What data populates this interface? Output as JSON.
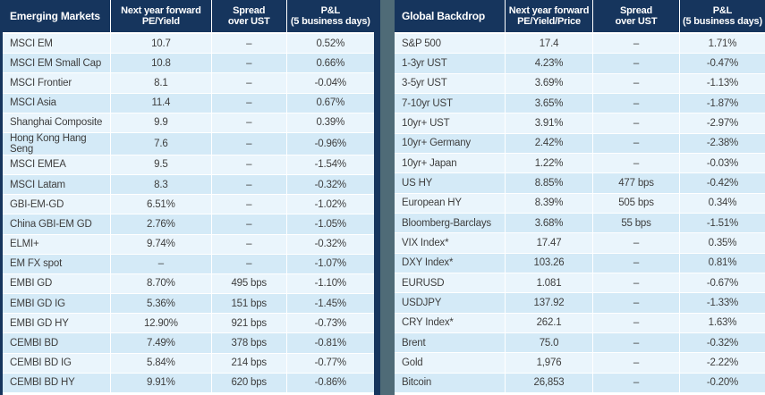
{
  "colors": {
    "header_bg": "#16355D",
    "divider": "#4F6B77",
    "row_light": "#EAF5FC",
    "row_dark": "#D4EAF7",
    "text": "#3E3E3E",
    "header_text": "#FFFFFF"
  },
  "tables": [
    {
      "title": "Emerging Markets",
      "columns": [
        {
          "line1": "Next year forward",
          "line2": "PE/Yield"
        },
        {
          "line1": "Spread",
          "line2": "over UST"
        },
        {
          "line1": "P&L",
          "line2": "(5 business days)"
        }
      ],
      "rows": [
        {
          "label": "MSCI EM",
          "value": "10.7",
          "spread": "–",
          "pl": "0.52%"
        },
        {
          "label": "MSCI EM Small Cap",
          "value": "10.8",
          "spread": "–",
          "pl": "0.66%"
        },
        {
          "label": "MSCI Frontier",
          "value": "8.1",
          "spread": "–",
          "pl": "-0.04%"
        },
        {
          "label": "MSCI Asia",
          "value": "11.4",
          "spread": "–",
          "pl": "0.67%"
        },
        {
          "label": "Shanghai Composite",
          "value": "9.9",
          "spread": "–",
          "pl": "0.39%"
        },
        {
          "label": "Hong Kong Hang Seng",
          "value": "7.6",
          "spread": "–",
          "pl": "-0.96%"
        },
        {
          "label": "MSCI EMEA",
          "value": "9.5",
          "spread": "–",
          "pl": "-1.54%"
        },
        {
          "label": "MSCI Latam",
          "value": "8.3",
          "spread": "–",
          "pl": "-0.32%"
        },
        {
          "label": "GBI-EM-GD",
          "value": "6.51%",
          "spread": "–",
          "pl": "-1.02%"
        },
        {
          "label": "China GBI-EM GD",
          "value": "2.76%",
          "spread": "–",
          "pl": "-1.05%"
        },
        {
          "label": "ELMI+",
          "value": "9.74%",
          "spread": "–",
          "pl": "-0.32%"
        },
        {
          "label": "EM FX spot",
          "value": "–",
          "spread": "–",
          "pl": "-1.07%"
        },
        {
          "label": "EMBI GD",
          "value": "8.70%",
          "spread": "495 bps",
          "pl": "-1.10%"
        },
        {
          "label": "EMBI GD IG",
          "value": "5.36%",
          "spread": "151 bps",
          "pl": "-1.45%"
        },
        {
          "label": "EMBI GD HY",
          "value": "12.90%",
          "spread": "921 bps",
          "pl": "-0.73%"
        },
        {
          "label": "CEMBI BD",
          "value": "7.49%",
          "spread": "378 bps",
          "pl": "-0.81%"
        },
        {
          "label": "CEMBI BD IG",
          "value": "5.84%",
          "spread": "214 bps",
          "pl": "-0.77%"
        },
        {
          "label": "CEMBI BD HY",
          "value": "9.91%",
          "spread": "620 bps",
          "pl": "-0.86%"
        }
      ]
    },
    {
      "title": "Global Backdrop",
      "columns": [
        {
          "line1": "Next year forward",
          "line2": "PE/Yield/Price"
        },
        {
          "line1": "Spread",
          "line2": "over UST"
        },
        {
          "line1": "P&L",
          "line2": "(5 business days)"
        }
      ],
      "rows": [
        {
          "label": "S&P 500",
          "value": "17.4",
          "spread": "–",
          "pl": "1.71%"
        },
        {
          "label": "1-3yr UST",
          "value": "4.23%",
          "spread": "–",
          "pl": "-0.47%"
        },
        {
          "label": "3-5yr UST",
          "value": "3.69%",
          "spread": "–",
          "pl": "-1.13%"
        },
        {
          "label": "7-10yr UST",
          "value": "3.65%",
          "spread": "–",
          "pl": "-1.87%"
        },
        {
          "label": "10yr+ UST",
          "value": "3.91%",
          "spread": "–",
          "pl": "-2.97%"
        },
        {
          "label": "10yr+ Germany",
          "value": "2.42%",
          "spread": "–",
          "pl": "-2.38%"
        },
        {
          "label": "10yr+ Japan",
          "value": "1.22%",
          "spread": "–",
          "pl": "-0.03%"
        },
        {
          "label": "US HY",
          "value": "8.85%",
          "spread": "477 bps",
          "pl": "-0.42%"
        },
        {
          "label": "European HY",
          "value": "8.39%",
          "spread": "505 bps",
          "pl": "0.34%"
        },
        {
          "label": "Bloomberg-Barclays",
          "value": "3.68%",
          "spread": "55 bps",
          "pl": "-1.51%"
        },
        {
          "label": "VIX Index*",
          "value": "17.47",
          "spread": "–",
          "pl": "0.35%"
        },
        {
          "label": "DXY Index*",
          "value": "103.26",
          "spread": "–",
          "pl": "0.81%"
        },
        {
          "label": "EURUSD",
          "value": "1.081",
          "spread": "–",
          "pl": "-0.67%"
        },
        {
          "label": "USDJPY",
          "value": "137.92",
          "spread": "–",
          "pl": "-1.33%"
        },
        {
          "label": "CRY Index*",
          "value": "262.1",
          "spread": "–",
          "pl": "1.63%"
        },
        {
          "label": "Brent",
          "value": "75.0",
          "spread": "–",
          "pl": "-0.32%"
        },
        {
          "label": "Gold",
          "value": "1,976",
          "spread": "–",
          "pl": "-2.22%"
        },
        {
          "label": "Bitcoin",
          "value": "26,853",
          "spread": "–",
          "pl": "-0.20%"
        }
      ]
    }
  ]
}
